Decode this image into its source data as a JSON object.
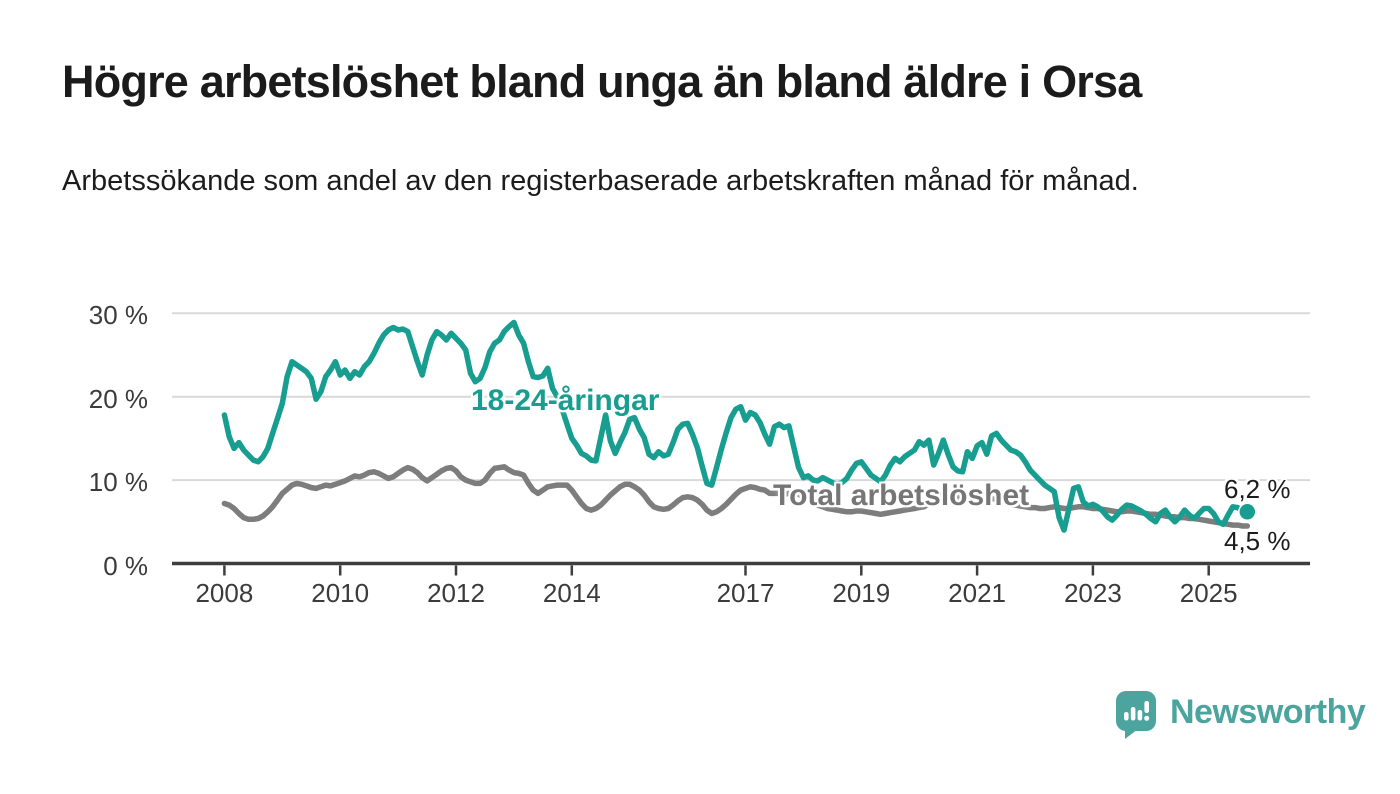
{
  "header": {
    "title": "Högre arbetslöshet bland unga än bland äldre i Orsa",
    "subtitle": "Arbetssökande som andel av den registerbaserade arbetskraften månad för månad."
  },
  "chart_data": {
    "type": "line",
    "title": "Högre arbetslöshet bland unga än bland äldre i Orsa",
    "ylabel": "",
    "xlabel": "",
    "unit": "%",
    "ylim": [
      0,
      32
    ],
    "grid": "horizontal",
    "x_start": {
      "year": 2008,
      "month": 1,
      "frequency": "monthly"
    },
    "x_ticks": [
      "2008",
      "2010",
      "2012",
      "2014",
      "2017",
      "2019",
      "2021",
      "2023",
      "2025"
    ],
    "y_ticks": [
      {
        "value": 0,
        "label": "0 %"
      },
      {
        "value": 10,
        "label": "10 %"
      },
      {
        "value": 20,
        "label": "20 %"
      },
      {
        "value": 30,
        "label": "30 %"
      }
    ],
    "series": [
      {
        "name": "18-24-åringar",
        "color": "#179e90",
        "end_label": "6,2 %",
        "end_value": 6.2,
        "end_dot": true,
        "values": [
          17.8,
          15.2,
          13.8,
          14.5,
          13.6,
          13.0,
          12.4,
          12.2,
          12.8,
          13.8,
          15.6,
          17.4,
          19.2,
          22.4,
          24.2,
          23.8,
          23.4,
          23.0,
          22.2,
          19.7,
          20.6,
          22.4,
          23.2,
          24.2,
          22.6,
          23.2,
          22.2,
          23.0,
          22.6,
          23.6,
          24.2,
          25.2,
          26.4,
          27.4,
          28.0,
          28.3,
          28.0,
          28.1,
          27.8,
          26.0,
          24.2,
          22.6,
          25.0,
          26.8,
          27.8,
          27.4,
          26.8,
          27.6,
          27.0,
          26.4,
          25.6,
          22.8,
          21.8,
          22.2,
          23.5,
          25.4,
          26.4,
          26.8,
          27.8,
          28.4,
          28.9,
          27.4,
          26.4,
          24.2,
          22.4,
          22.3,
          22.5,
          23.4,
          21.0,
          20.0,
          18.5,
          16.7,
          15.0,
          14.2,
          13.2,
          12.9,
          12.4,
          12.3,
          15.1,
          17.8,
          14.7,
          13.2,
          14.5,
          15.7,
          17.3,
          17.5,
          16.1,
          15.1,
          13.1,
          12.7,
          13.4,
          12.9,
          13.1,
          14.5,
          16.1,
          16.7,
          16.8,
          15.5,
          13.9,
          11.7,
          9.6,
          9.4,
          11.5,
          13.7,
          15.7,
          17.5,
          18.5,
          18.8,
          17.2,
          18.1,
          17.8,
          16.9,
          15.5,
          14.3,
          16.4,
          16.7,
          16.3,
          16.5,
          14.0,
          11.5,
          10.3,
          10.5,
          10.0,
          9.9,
          10.3,
          10.0,
          9.7,
          9.5,
          9.7,
          10.2,
          11.2,
          12.0,
          12.2,
          11.4,
          10.6,
          10.2,
          9.8,
          10.6,
          11.8,
          12.6,
          12.2,
          12.8,
          13.2,
          13.6,
          14.6,
          14.2,
          14.8,
          11.8,
          13.2,
          14.8,
          13.1,
          11.6,
          11.1,
          11.0,
          13.4,
          12.6,
          14.1,
          14.5,
          13.1,
          15.3,
          15.6,
          14.8,
          14.2,
          13.6,
          13.4,
          13.0,
          12.2,
          11.2,
          10.6,
          10.0,
          9.4,
          9.0,
          8.6,
          5.5,
          4.0,
          6.5,
          9.0,
          9.2,
          7.4,
          6.9,
          7.1,
          6.8,
          6.3,
          5.6,
          5.2,
          5.8,
          6.5,
          7.0,
          6.9,
          6.6,
          6.3,
          5.9,
          5.4,
          5.0,
          6.0,
          6.4,
          5.6,
          5.0,
          5.6,
          6.4,
          5.8,
          5.4,
          6.0,
          6.6,
          6.6,
          6.0,
          5.0,
          4.7,
          5.8,
          6.8,
          6.7,
          6.3,
          6.2
        ]
      },
      {
        "name": "Total arbetslöshet",
        "color": "#7d7d7d",
        "end_label": "4,5 %",
        "end_value": 4.5,
        "end_dot": false,
        "values": [
          7.2,
          7.0,
          6.6,
          6.0,
          5.5,
          5.3,
          5.3,
          5.4,
          5.7,
          6.2,
          6.8,
          7.6,
          8.4,
          8.9,
          9.4,
          9.6,
          9.5,
          9.3,
          9.1,
          9.0,
          9.2,
          9.4,
          9.3,
          9.5,
          9.7,
          9.9,
          10.2,
          10.5,
          10.4,
          10.6,
          10.9,
          11.0,
          10.8,
          10.5,
          10.2,
          10.4,
          10.8,
          11.2,
          11.5,
          11.3,
          10.9,
          10.3,
          9.9,
          10.3,
          10.7,
          11.1,
          11.4,
          11.5,
          11.1,
          10.4,
          10.0,
          9.8,
          9.6,
          9.6,
          10.0,
          10.8,
          11.4,
          11.5,
          11.6,
          11.2,
          10.9,
          10.8,
          10.6,
          9.6,
          8.8,
          8.4,
          8.8,
          9.2,
          9.3,
          9.4,
          9.4,
          9.4,
          8.8,
          8.0,
          7.2,
          6.6,
          6.4,
          6.6,
          7.0,
          7.6,
          8.2,
          8.7,
          9.2,
          9.5,
          9.5,
          9.2,
          8.8,
          8.2,
          7.4,
          6.8,
          6.6,
          6.5,
          6.6,
          7.0,
          7.5,
          7.9,
          8.0,
          7.9,
          7.6,
          7.1,
          6.4,
          6.0,
          6.2,
          6.6,
          7.1,
          7.7,
          8.3,
          8.8,
          9.0,
          9.2,
          9.1,
          8.9,
          8.8,
          8.4,
          8.4,
          8.4,
          8.3,
          8.4,
          8.4,
          8.3,
          8.0,
          7.7,
          7.3,
          7.0,
          6.8,
          6.6,
          6.5,
          6.4,
          6.3,
          6.2,
          6.2,
          6.3,
          6.3,
          6.2,
          6.1,
          6.0,
          5.9,
          6.0,
          6.1,
          6.2,
          6.3,
          6.4,
          6.5,
          6.6,
          6.7,
          6.8,
          7.2,
          7.9,
          8.2,
          8.3,
          8.2,
          8.1,
          8.0,
          7.9,
          7.9,
          8.0,
          8.0,
          8.0,
          7.9,
          7.8,
          7.7,
          7.5,
          7.3,
          7.1,
          7.0,
          6.9,
          6.8,
          6.7,
          6.7,
          6.6,
          6.6,
          6.7,
          6.8,
          6.7,
          6.6,
          6.6,
          6.7,
          6.8,
          6.8,
          6.7,
          6.6,
          6.6,
          6.5,
          6.4,
          6.3,
          6.2,
          6.2,
          6.3,
          6.3,
          6.2,
          6.1,
          6.0,
          5.9,
          5.9,
          5.8,
          5.7,
          5.6,
          5.6,
          5.5,
          5.5,
          5.4,
          5.4,
          5.3,
          5.2,
          5.1,
          5.0,
          4.9,
          4.8,
          4.7,
          4.6,
          4.6,
          4.5,
          4.5
        ]
      }
    ],
    "colors": {
      "accent_teal": "#179e90",
      "line_gray": "#7d7d7d",
      "axis_text": "#3b3b3b",
      "gridline": "#d9d9d9",
      "axis_line": "#3d3d3d"
    }
  },
  "branding": {
    "name": "Newsworthy",
    "color": "#4ba49d"
  }
}
